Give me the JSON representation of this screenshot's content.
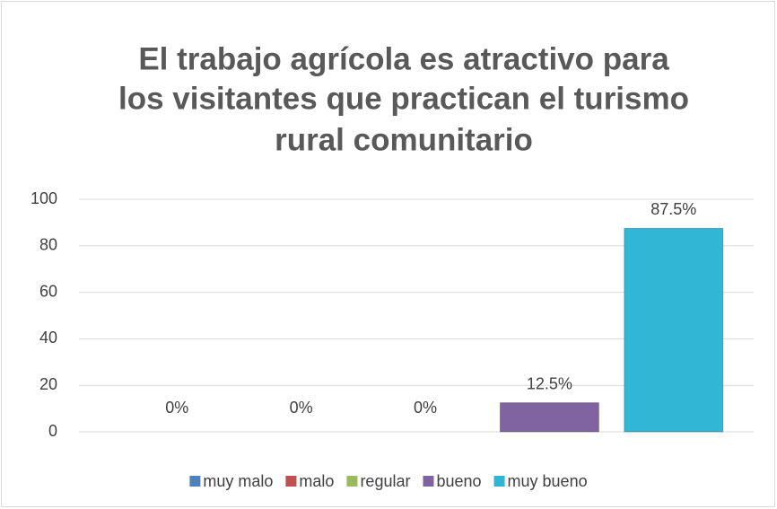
{
  "chart_data": {
    "type": "bar",
    "title": [
      "El trabajo agrícola es atractivo para",
      "los visitantes que practican el turismo",
      "rural comunitario"
    ],
    "categories": [
      null
    ],
    "series": [
      {
        "name": "muy malo",
        "color": "#4f81bd",
        "values": [
          0
        ],
        "value_labels": [
          "0%"
        ]
      },
      {
        "name": "malo",
        "color": "#c0504d",
        "values": [
          0
        ],
        "value_labels": [
          "0%"
        ]
      },
      {
        "name": "regular",
        "color": "#9bbb59",
        "values": [
          0
        ],
        "value_labels": [
          "0%"
        ]
      },
      {
        "name": "bueno",
        "color": "#8064a2",
        "values": [
          12.5
        ],
        "value_labels": [
          "12.5%"
        ]
      },
      {
        "name": "muy bueno",
        "color": "#31b6d6",
        "values": [
          87.5
        ],
        "value_labels": [
          "87.5%"
        ]
      }
    ],
    "ylim": [
      0,
      100
    ],
    "yticks": [
      0,
      20,
      40,
      60,
      80,
      100
    ],
    "grid": true,
    "legend": "bottom"
  }
}
